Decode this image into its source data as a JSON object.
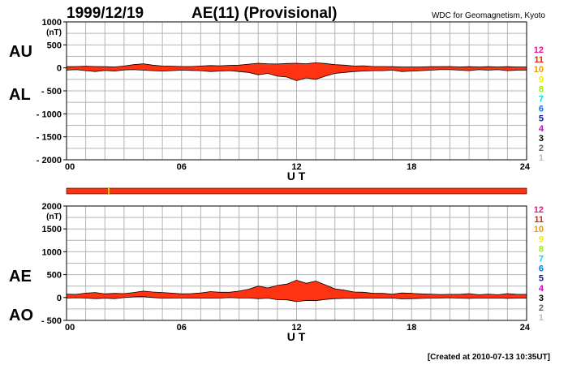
{
  "header": {
    "date": "1999/12/19",
    "title": "AE(11) (Provisional)",
    "source": "WDC for Geomagnetism, Kyoto"
  },
  "footer": {
    "created": "[Created at 2010-07-13 10:35UT]"
  },
  "colors": {
    "fill": "#ff3311",
    "grid": "#b4b4b4",
    "strip": "#ff3311",
    "strip_mark": "#e8c800"
  },
  "station_legend": [
    {
      "label": "12",
      "color": "#ee1199"
    },
    {
      "label": "11",
      "color": "#ee2200"
    },
    {
      "label": "10",
      "color": "#ee9900"
    },
    {
      "label": "9",
      "color": "#eeee00"
    },
    {
      "label": "8",
      "color": "#99ee00"
    },
    {
      "label": "7",
      "color": "#00dddd"
    },
    {
      "label": "6",
      "color": "#0077ee"
    },
    {
      "label": "5",
      "color": "#1111aa"
    },
    {
      "label": "4",
      "color": "#cc00cc"
    },
    {
      "label": "3",
      "color": "#000000"
    },
    {
      "label": "2",
      "color": "#666666"
    },
    {
      "label": "1",
      "color": "#bbbbbb"
    }
  ],
  "chart_data": [
    {
      "type": "area",
      "panel": "AU/AL",
      "xlabel": "U T",
      "ylabel_unit": "(nT)",
      "side_labels": [
        "AU",
        "AL"
      ],
      "xlim": [
        0,
        24
      ],
      "ylim": [
        -2000,
        1000
      ],
      "x_ticks": [
        "00",
        "06",
        "12",
        "18",
        "24"
      ],
      "y_ticks": [
        {
          "value": 1000,
          "label": "1000"
        },
        {
          "value": 500,
          "label": "500"
        },
        {
          "value": 0,
          "label": "0"
        },
        {
          "value": -500,
          "label": "- 500"
        },
        {
          "value": -1000,
          "label": "- 1000"
        },
        {
          "value": -1500,
          "label": "- 1500"
        },
        {
          "value": -2000,
          "label": "- 2000"
        }
      ],
      "x": [
        0,
        0.5,
        1,
        1.5,
        2,
        2.5,
        3,
        3.5,
        4,
        4.5,
        5,
        5.5,
        6,
        6.5,
        7,
        7.5,
        8,
        8.5,
        9,
        9.5,
        10,
        10.5,
        11,
        11.5,
        12,
        12.5,
        13,
        13.5,
        14,
        14.5,
        15,
        15.5,
        16,
        16.5,
        17,
        17.5,
        18,
        18.5,
        19,
        19.5,
        20,
        20.5,
        21,
        21.5,
        22,
        22.5,
        23,
        23.5,
        24
      ],
      "series": [
        {
          "name": "AU",
          "values": [
            25,
            30,
            35,
            30,
            25,
            20,
            40,
            70,
            90,
            60,
            40,
            35,
            30,
            30,
            40,
            50,
            45,
            55,
            60,
            80,
            100,
            90,
            85,
            95,
            100,
            90,
            110,
            95,
            70,
            60,
            40,
            45,
            30,
            30,
            25,
            20,
            20,
            20,
            25,
            25,
            30,
            20,
            25,
            20,
            25,
            20,
            25,
            20,
            20
          ]
        },
        {
          "name": "AL",
          "values": [
            -50,
            -40,
            -60,
            -80,
            -55,
            -70,
            -45,
            -40,
            -50,
            -60,
            -70,
            -60,
            -50,
            -55,
            -60,
            -80,
            -70,
            -60,
            -80,
            -100,
            -150,
            -120,
            -180,
            -200,
            -280,
            -220,
            -250,
            -180,
            -120,
            -100,
            -80,
            -70,
            -60,
            -60,
            -50,
            -80,
            -70,
            -60,
            -50,
            -40,
            -40,
            -50,
            -60,
            -40,
            -50,
            -40,
            -60,
            -50,
            -50
          ]
        }
      ]
    },
    {
      "type": "area",
      "panel": "AE/AO",
      "xlabel": "U T",
      "ylabel_unit": "(nT)",
      "side_labels": [
        "AE",
        "AO"
      ],
      "xlim": [
        0,
        24
      ],
      "ylim": [
        -500,
        2000
      ],
      "x_ticks": [
        "00",
        "06",
        "12",
        "18",
        "24"
      ],
      "y_ticks": [
        {
          "value": 2000,
          "label": "2000"
        },
        {
          "value": 1500,
          "label": "1500"
        },
        {
          "value": 1000,
          "label": "1000"
        },
        {
          "value": 500,
          "label": "500"
        },
        {
          "value": 0,
          "label": "0"
        },
        {
          "value": -500,
          "label": "- 500"
        }
      ],
      "x": [
        0,
        0.5,
        1,
        1.5,
        2,
        2.5,
        3,
        3.5,
        4,
        4.5,
        5,
        5.5,
        6,
        6.5,
        7,
        7.5,
        8,
        8.5,
        9,
        9.5,
        10,
        10.5,
        11,
        11.5,
        12,
        12.5,
        13,
        13.5,
        14,
        14.5,
        15,
        15.5,
        16,
        16.5,
        17,
        17.5,
        18,
        18.5,
        19,
        19.5,
        20,
        20.5,
        21,
        21.5,
        22,
        22.5,
        23,
        23.5,
        24
      ],
      "series": [
        {
          "name": "AE",
          "values": [
            75,
            70,
            95,
            110,
            80,
            90,
            85,
            110,
            140,
            120,
            110,
            95,
            80,
            85,
            100,
            130,
            115,
            115,
            140,
            180,
            250,
            210,
            265,
            295,
            380,
            310,
            360,
            275,
            190,
            160,
            120,
            115,
            90,
            90,
            75,
            100,
            90,
            80,
            75,
            65,
            70,
            70,
            85,
            60,
            75,
            60,
            85,
            70,
            70
          ]
        },
        {
          "name": "AO",
          "values": [
            -12,
            -5,
            -12,
            -25,
            -15,
            -25,
            -2,
            15,
            20,
            0,
            -15,
            -12,
            -10,
            -12,
            -10,
            -15,
            -12,
            -2,
            -10,
            -10,
            -25,
            -15,
            -48,
            -52,
            -90,
            -65,
            -70,
            -42,
            -25,
            -20,
            -20,
            -12,
            -15,
            -15,
            -12,
            -30,
            -25,
            -20,
            -12,
            -8,
            -5,
            -15,
            -18,
            -10,
            -12,
            -10,
            -18,
            -15,
            -15
          ]
        }
      ]
    }
  ]
}
